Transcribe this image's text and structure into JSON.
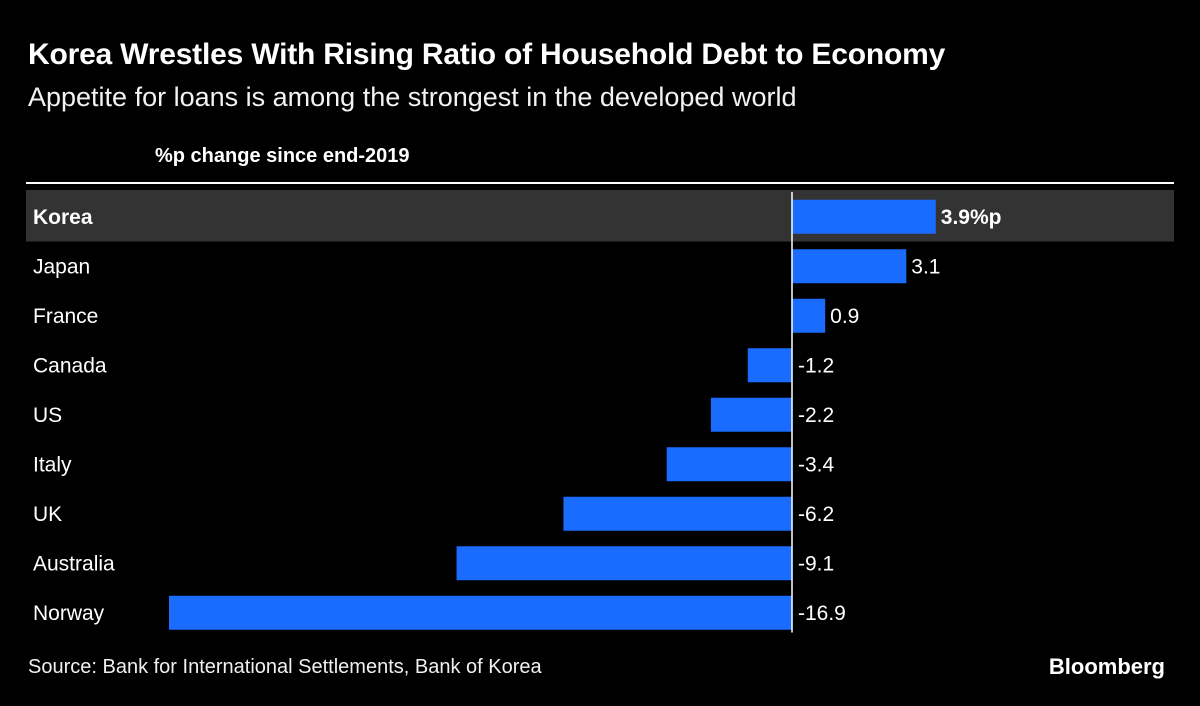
{
  "header": {
    "title": "Korea Wrestles With Rising Ratio of Household Debt to Economy",
    "subtitle": "Appetite for loans is among the strongest in the developed world",
    "axis_header": "%p change since end-2019"
  },
  "footer": {
    "source": "Source: Bank for International Settlements, Bank of Korea",
    "brand": "Bloomberg"
  },
  "colors": {
    "background": "#000000",
    "bar": "#1a6cff",
    "highlight_row": "#333333",
    "text": "#ffffff"
  },
  "chart_data": {
    "type": "bar",
    "orientation": "horizontal",
    "categories": [
      "Korea",
      "Japan",
      "France",
      "Canada",
      "US",
      "Italy",
      "UK",
      "Australia",
      "Norway"
    ],
    "values": [
      3.9,
      3.1,
      0.9,
      -1.2,
      -2.2,
      -3.4,
      -6.2,
      -9.1,
      -16.9
    ],
    "value_labels": [
      "3.9%p",
      "3.1",
      "0.9",
      "-1.2",
      "-2.2",
      "-3.4",
      "-6.2",
      "-9.1",
      "-16.9"
    ],
    "highlight": "Korea",
    "xlabel": "%p change since end-2019",
    "xlim": [
      -16.9,
      3.9
    ],
    "grid": false
  }
}
